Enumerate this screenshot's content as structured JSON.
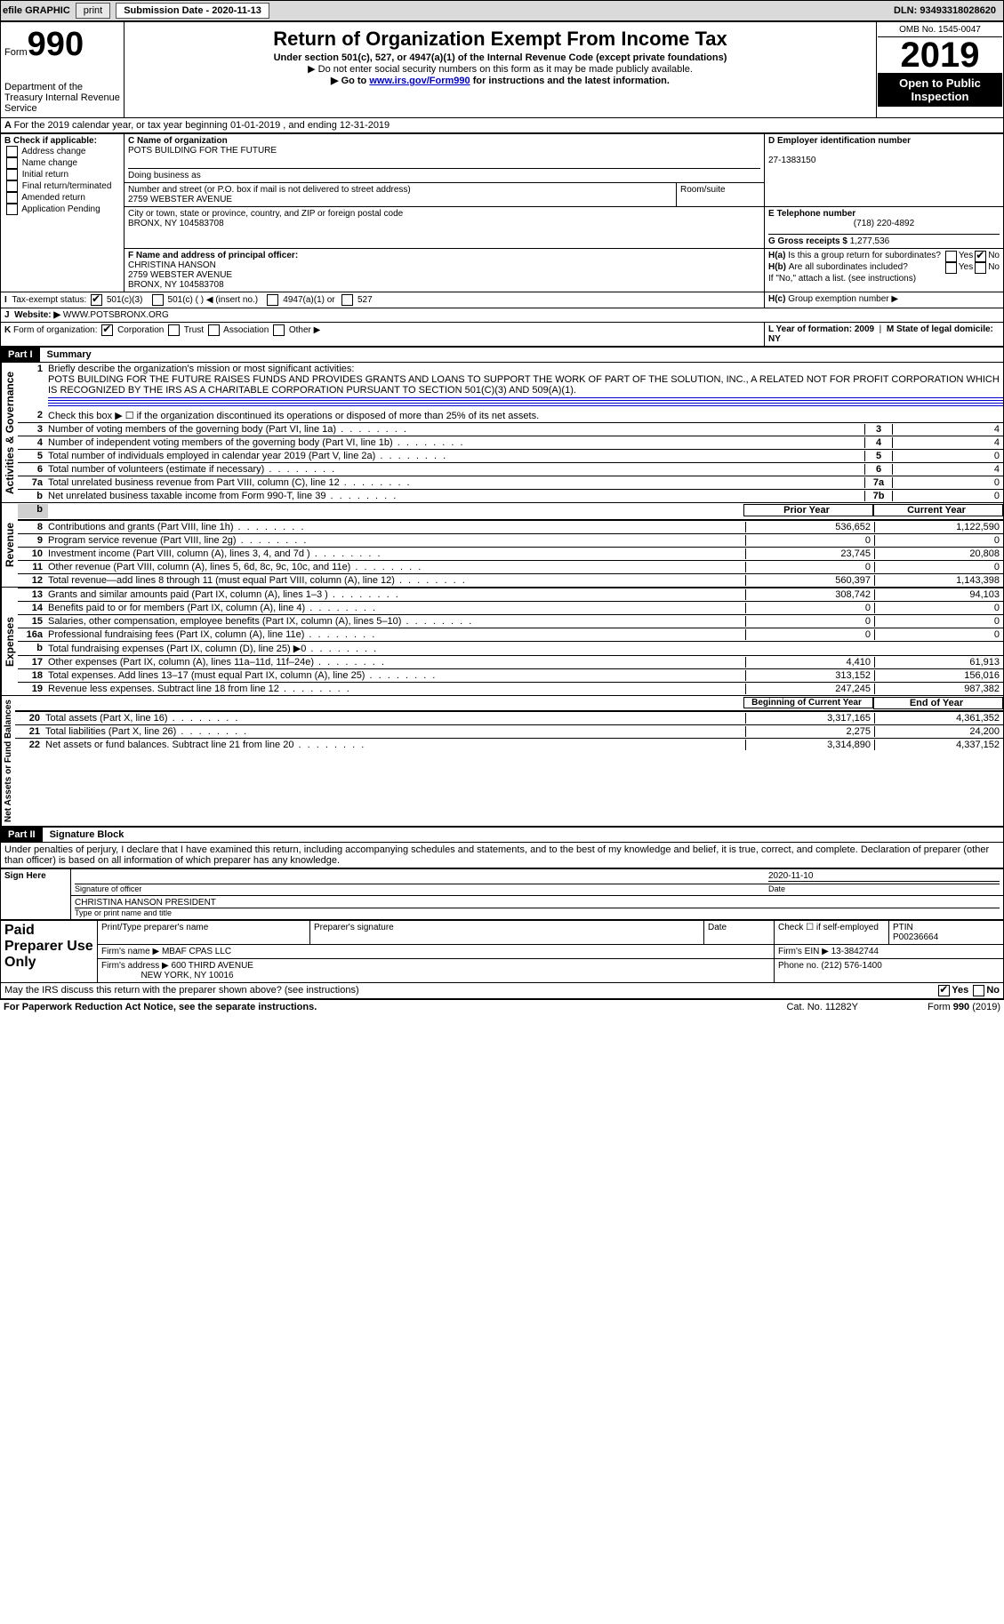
{
  "topbar": {
    "efile_label": "efile GRAPHIC",
    "print_btn": "print",
    "submission_label": "Submission Date - 2020-11-13",
    "dln": "DLN: 93493318028620"
  },
  "header": {
    "form_word": "Form",
    "form_num": "990",
    "title": "Return of Organization Exempt From Income Tax",
    "subtitle": "Under section 501(c), 527, or 4947(a)(1) of the Internal Revenue Code (except private foundations)",
    "note1": "▶ Do not enter social security numbers on this form as it may be made publicly available.",
    "note2_pre": "▶ Go to ",
    "note2_link": "www.irs.gov/Form990",
    "note2_post": " for instructions and the latest information.",
    "dept": "Department of the Treasury\nInternal Revenue Service",
    "omb": "OMB No. 1545-0047",
    "year": "2019",
    "open": "Open to Public\nInspection"
  },
  "A": {
    "text": "For the 2019 calendar year, or tax year beginning 01-01-2019   , and ending 12-31-2019"
  },
  "B": {
    "label": "B Check if applicable:",
    "items": [
      "Address change",
      "Name change",
      "Initial return",
      "Final return/terminated",
      "Amended return",
      "Application Pending"
    ]
  },
  "C": {
    "name_label": "C Name of organization",
    "name": "POTS BUILDING FOR THE FUTURE",
    "dba_label": "Doing business as",
    "street_label": "Number and street (or P.O. box if mail is not delivered to street address)",
    "street": "2759 WEBSTER AVENUE",
    "room_label": "Room/suite",
    "city_label": "City or town, state or province, country, and ZIP or foreign postal code",
    "city": "BRONX, NY  104583708"
  },
  "D": {
    "label": "D Employer identification number",
    "value": "27-1383150"
  },
  "E": {
    "label": "E Telephone number",
    "value": "(718) 220-4892"
  },
  "G": {
    "label": "G Gross receipts $",
    "value": "1,277,536"
  },
  "F": {
    "label": "F Name and address of principal officer:",
    "name": "CHRISTINA HANSON",
    "street": "2759 WEBSTER AVENUE",
    "city": "BRONX, NY  104583708"
  },
  "H": {
    "a": "Is this a group return for subordinates?",
    "b": "Are all subordinates included?",
    "b_note": "If \"No,\" attach a list. (see instructions)",
    "c": "Group exemption number ▶",
    "yes": "Yes",
    "no": "No"
  },
  "I": {
    "label": "Tax-exempt status:",
    "opt1": "501(c)(3)",
    "opt2": "501(c) ( ) ◀ (insert no.)",
    "opt3": "4947(a)(1) or",
    "opt4": "527"
  },
  "J": {
    "label": "Website: ▶",
    "value": "WWW.POTSBRONX.ORG"
  },
  "K": {
    "label": "Form of organization:",
    "o1": "Corporation",
    "o2": "Trust",
    "o3": "Association",
    "o4": "Other ▶"
  },
  "L": {
    "label": "L Year of formation: 2009"
  },
  "M": {
    "label": "M State of legal domicile: NY"
  },
  "part1": {
    "bar": "Part I",
    "title": "Summary",
    "line1_label": "Briefly describe the organization's mission or most significant activities:",
    "mission": "POTS BUILDING FOR THE FUTURE RAISES FUNDS AND PROVIDES GRANTS AND LOANS TO SUPPORT THE WORK OF PART OF THE SOLUTION, INC., A RELATED NOT FOR PROFIT CORPORATION WHICH IS RECOGNIZED BY THE IRS AS A CHARITABLE CORPORATION PURSUANT TO SECTION 501(C)(3) AND 509(A)(1).",
    "line2": "Check this box ▶ ☐  if the organization discontinued its operations or disposed of more than 25% of its net assets.",
    "sideA": "Activities & Governance",
    "sideR": "Revenue",
    "sideE": "Expenses",
    "sideN": "Net Assets or\nFund Balances",
    "rows_gov": [
      {
        "n": "3",
        "t": "Number of voting members of the governing body (Part VI, line 1a)",
        "box": "3",
        "v": "4"
      },
      {
        "n": "4",
        "t": "Number of independent voting members of the governing body (Part VI, line 1b)",
        "box": "4",
        "v": "4"
      },
      {
        "n": "5",
        "t": "Total number of individuals employed in calendar year 2019 (Part V, line 2a)",
        "box": "5",
        "v": "0"
      },
      {
        "n": "6",
        "t": "Total number of volunteers (estimate if necessary)",
        "box": "6",
        "v": "4"
      },
      {
        "n": "7a",
        "t": "Total unrelated business revenue from Part VIII, column (C), line 12",
        "box": "7a",
        "v": "0"
      },
      {
        "n": "b",
        "t": "Net unrelated business taxable income from Form 990-T, line 39",
        "box": "7b",
        "v": "0"
      }
    ],
    "col_prior": "Prior Year",
    "col_current": "Current Year",
    "rows_rev": [
      {
        "n": "8",
        "t": "Contributions and grants (Part VIII, line 1h)",
        "p": "536,652",
        "c": "1,122,590"
      },
      {
        "n": "9",
        "t": "Program service revenue (Part VIII, line 2g)",
        "p": "0",
        "c": "0"
      },
      {
        "n": "10",
        "t": "Investment income (Part VIII, column (A), lines 3, 4, and 7d )",
        "p": "23,745",
        "c": "20,808"
      },
      {
        "n": "11",
        "t": "Other revenue (Part VIII, column (A), lines 5, 6d, 8c, 9c, 10c, and 11e)",
        "p": "0",
        "c": "0"
      },
      {
        "n": "12",
        "t": "Total revenue—add lines 8 through 11 (must equal Part VIII, column (A), line 12)",
        "p": "560,397",
        "c": "1,143,398"
      }
    ],
    "rows_exp": [
      {
        "n": "13",
        "t": "Grants and similar amounts paid (Part IX, column (A), lines 1–3 )",
        "p": "308,742",
        "c": "94,103"
      },
      {
        "n": "14",
        "t": "Benefits paid to or for members (Part IX, column (A), line 4)",
        "p": "0",
        "c": "0"
      },
      {
        "n": "15",
        "t": "Salaries, other compensation, employee benefits (Part IX, column (A), lines 5–10)",
        "p": "0",
        "c": "0"
      },
      {
        "n": "16a",
        "t": "Professional fundraising fees (Part IX, column (A), line 11e)",
        "p": "0",
        "c": "0"
      },
      {
        "n": "b",
        "t": "Total fundraising expenses (Part IX, column (D), line 25) ▶0",
        "p": "",
        "c": "",
        "shaded": true
      },
      {
        "n": "17",
        "t": "Other expenses (Part IX, column (A), lines 11a–11d, 11f–24e)",
        "p": "4,410",
        "c": "61,913"
      },
      {
        "n": "18",
        "t": "Total expenses. Add lines 13–17 (must equal Part IX, column (A), line 25)",
        "p": "313,152",
        "c": "156,016"
      },
      {
        "n": "19",
        "t": "Revenue less expenses. Subtract line 18 from line 12",
        "p": "247,245",
        "c": "987,382"
      }
    ],
    "col_begin": "Beginning of Current Year",
    "col_end": "End of Year",
    "rows_net": [
      {
        "n": "20",
        "t": "Total assets (Part X, line 16)",
        "p": "3,317,165",
        "c": "4,361,352"
      },
      {
        "n": "21",
        "t": "Total liabilities (Part X, line 26)",
        "p": "2,275",
        "c": "24,200"
      },
      {
        "n": "22",
        "t": "Net assets or fund balances. Subtract line 21 from line 20",
        "p": "3,314,890",
        "c": "4,337,152"
      }
    ]
  },
  "part2": {
    "bar": "Part II",
    "title": "Signature Block",
    "decl": "Under penalties of perjury, I declare that I have examined this return, including accompanying schedules and statements, and to the best of my knowledge and belief, it is true, correct, and complete. Declaration of preparer (other than officer) is based on all information of which preparer has any knowledge.",
    "sign_here": "Sign\nHere",
    "sig_officer": "Signature of officer",
    "sig_date": "Date",
    "sig_date_val": "2020-11-10",
    "officer_name": "CHRISTINA HANSON  PRESIDENT",
    "officer_sub": "Type or print name and title",
    "paid": "Paid\nPreparer\nUse Only",
    "prep_name_h": "Print/Type preparer's name",
    "prep_sig_h": "Preparer's signature",
    "date_h": "Date",
    "check_self": "Check ☐ if self-employed",
    "ptin_h": "PTIN",
    "ptin": "P00236664",
    "firm_name_h": "Firm's name    ▶",
    "firm_name": "MBAF CPAS LLC",
    "firm_ein_h": "Firm's EIN ▶",
    "firm_ein": "13-3842744",
    "firm_addr_h": "Firm's address ▶",
    "firm_addr1": "600 THIRD AVENUE",
    "firm_addr2": "NEW YORK, NY  10016",
    "phone_h": "Phone no.",
    "phone": "(212) 576-1400",
    "discuss": "May the IRS discuss this return with the preparer shown above? (see instructions)",
    "yes": "Yes",
    "no": "No"
  },
  "footer": {
    "left": "For Paperwork Reduction Act Notice, see the separate instructions.",
    "mid": "Cat. No. 11282Y",
    "right": "Form 990 (2019)"
  }
}
